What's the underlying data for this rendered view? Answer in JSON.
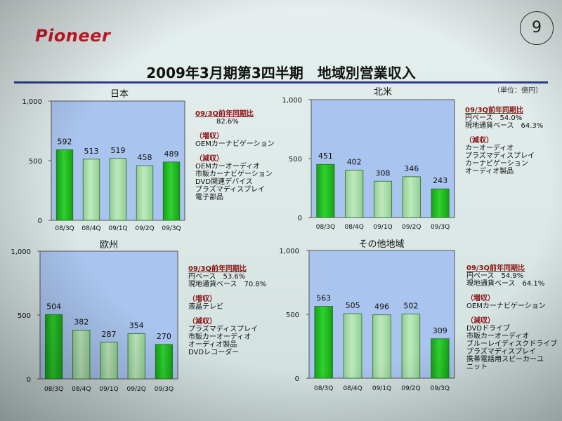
{
  "logo": "Pioneer",
  "page_number": "9",
  "title": "2009年3月期第3四半期　地域別営業収入",
  "unit": "（単位：億円）",
  "colors": {
    "bar_green": "#2fd22f",
    "bar_pale": "#bfe8bf",
    "plot_bg": "#a9c4ee",
    "rule": "#2b3f8f",
    "logo": "#d0182a"
  },
  "chart_data": [
    {
      "type": "bar",
      "title": "日本",
      "categories": [
        "08/3Q",
        "08/4Q",
        "09/1Q",
        "09/2Q",
        "09/3Q"
      ],
      "values": [
        592,
        513,
        519,
        458,
        489
      ],
      "ylim": [
        0,
        1000
      ],
      "yticks": [
        "0",
        "500",
        "1,000"
      ],
      "grid": false
    },
    {
      "type": "bar",
      "title": "北米",
      "categories": [
        "08/3Q",
        "08/4Q",
        "09/1Q",
        "09/2Q",
        "09/3Q"
      ],
      "values": [
        451,
        402,
        308,
        346,
        243
      ],
      "ylim": [
        0,
        1000
      ],
      "yticks": [
        "0",
        "500",
        "1,000"
      ],
      "grid": false
    },
    {
      "type": "bar",
      "title": "欧州",
      "categories": [
        "08/3Q",
        "08/4Q",
        "09/1Q",
        "09/2Q",
        "09/3Q"
      ],
      "values": [
        504,
        382,
        287,
        354,
        270
      ],
      "ylim": [
        0,
        1000
      ],
      "yticks": [
        "0",
        "500",
        "1,000"
      ],
      "grid": false
    },
    {
      "type": "bar",
      "title": "その他地域",
      "categories": [
        "08/3Q",
        "08/4Q",
        "09/1Q",
        "09/2Q",
        "09/3Q"
      ],
      "values": [
        563,
        505,
        496,
        502,
        309
      ],
      "ylim": [
        0,
        1000
      ],
      "yticks": [
        "0",
        "500",
        "1,000"
      ],
      "grid": false
    }
  ],
  "annotations": [
    {
      "header": "09/3Q前年同期比",
      "rows": [
        {
          "label": "",
          "value": "82.6%"
        }
      ],
      "increase_label": "（増収）",
      "increase_items": [
        "OEMカーナビゲーション"
      ],
      "decrease_label": "（減収）",
      "decrease_items": [
        "OEMカーオーディオ",
        "市販カーナビゲーション",
        "DVD関連デバイス",
        "プラズマディスプレイ",
        "電子部品"
      ]
    },
    {
      "header": "09/3Q前年同期比",
      "rows": [
        {
          "label": "円ベース",
          "value": "54.0%"
        },
        {
          "label": "現地通貨ベース",
          "value": "64.3%"
        }
      ],
      "increase_label": "",
      "increase_items": [],
      "decrease_label": "（減収）",
      "decrease_items": [
        "カーオーディオ",
        "プラズマディスプレイ",
        "カーナビゲーション",
        "オーディオ製品"
      ]
    },
    {
      "header": "09/3Q前年同期比",
      "rows": [
        {
          "label": "円ベース",
          "value": "53.6%"
        },
        {
          "label": "現地通貨ベース",
          "value": "70.8%"
        }
      ],
      "increase_label": "（増収）",
      "increase_items": [
        "液晶テレビ"
      ],
      "decrease_label": "（減収）",
      "decrease_items": [
        "プラズマディスプレイ",
        "市販カーオーディオ",
        "オーディオ製品",
        "DVDレコーダー"
      ]
    },
    {
      "header": "09/3Q前年同期比",
      "rows": [
        {
          "label": "円ベース",
          "value": "54.9%"
        },
        {
          "label": "現地通貨ベース",
          "value": "64.1%"
        }
      ],
      "increase_label": "（増収）",
      "increase_items": [
        "OEMカーナビゲーション"
      ],
      "decrease_label": "（減収）",
      "decrease_items": [
        "DVDドライブ",
        "市販カーオーディオ",
        "ブルーレイディスクドライブ",
        "プラズマディスプレイ",
        "携帯電話用スピーカーユ",
        "ニット"
      ]
    }
  ]
}
